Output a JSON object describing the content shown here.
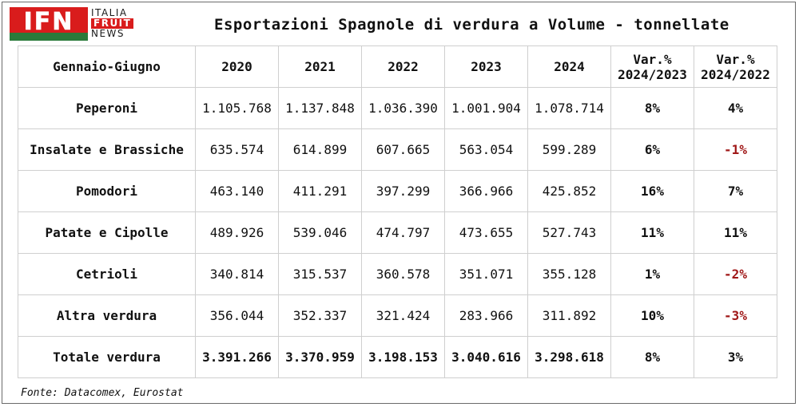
{
  "logo": {
    "text": "IFN",
    "line1": "ITALIA",
    "line2": "FRUIT",
    "line3": "NEWS",
    "colors": {
      "red": "#d91c1c",
      "green": "#2a7a3a"
    }
  },
  "title": "Esportazioni Spagnole di verdura a Volume - tonnellate",
  "source": "Fonte: Datacomex, Eurostat",
  "chart_data": {
    "type": "table",
    "title": "Esportazioni Spagnole di verdura a Volume - tonnellate",
    "columns": [
      "Gennaio-Giugno",
      "2020",
      "2021",
      "2022",
      "2023",
      "2024",
      "Var.% 2024/2023",
      "Var.% 2024/2022"
    ],
    "column_header_lines": [
      [
        "Gennaio-Giugno"
      ],
      [
        "2020"
      ],
      [
        "2021"
      ],
      [
        "2022"
      ],
      [
        "2023"
      ],
      [
        "2024"
      ],
      [
        "Var.%",
        "2024/2023"
      ],
      [
        "Var.%",
        "2024/2022"
      ]
    ],
    "rows": [
      [
        "Peperoni",
        "1.105.768",
        "1.137.848",
        "1.036.390",
        "1.001.904",
        "1.078.714",
        "8%",
        "4%"
      ],
      [
        "Insalate e Brassiche",
        "635.574",
        "614.899",
        "607.665",
        "563.054",
        "599.289",
        "6%",
        "-1%"
      ],
      [
        "Pomodori",
        "463.140",
        "411.291",
        "397.299",
        "366.966",
        "425.852",
        "16%",
        "7%"
      ],
      [
        "Patate e Cipolle",
        "489.926",
        "539.046",
        "474.797",
        "473.655",
        "527.743",
        "11%",
        "11%"
      ],
      [
        "Cetrioli",
        "340.814",
        "315.537",
        "360.578",
        "351.071",
        "355.128",
        "1%",
        "-2%"
      ],
      [
        "Altra verdura",
        "356.044",
        "352.337",
        "321.424",
        "283.966",
        "311.892",
        "10%",
        "-3%"
      ],
      [
        "Totale verdura",
        "3.391.266",
        "3.370.959",
        "3.198.153",
        "3.040.616",
        "3.298.618",
        "8%",
        "3%"
      ]
    ],
    "negative_color": "#a01818"
  }
}
